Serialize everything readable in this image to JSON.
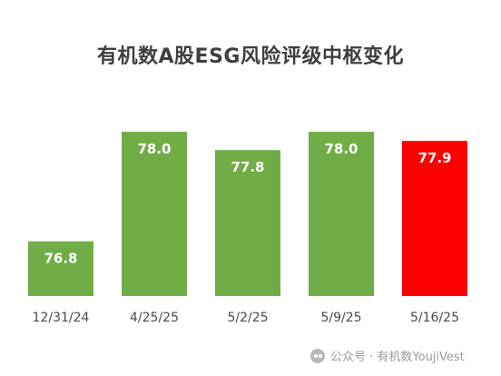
{
  "chart_data": {
    "type": "bar",
    "title": "有机数A股ESG风险评级中枢变化",
    "categories": [
      "12/31/24",
      "4/25/25",
      "5/2/25",
      "5/9/25",
      "5/16/25"
    ],
    "values": [
      76.8,
      78.0,
      77.8,
      78.0,
      77.9
    ],
    "value_labels": [
      "76.8",
      "78.0",
      "77.8",
      "78.0",
      "77.9"
    ],
    "colors": [
      "#70ad47",
      "#70ad47",
      "#70ad47",
      "#70ad47",
      "#ff0000"
    ],
    "ylim": [
      76.2,
      78.2
    ],
    "grid": false,
    "legend": "none"
  },
  "watermark": {
    "icon": "wechat-icon",
    "text": "公众号 · 有机数YoujiVest"
  }
}
